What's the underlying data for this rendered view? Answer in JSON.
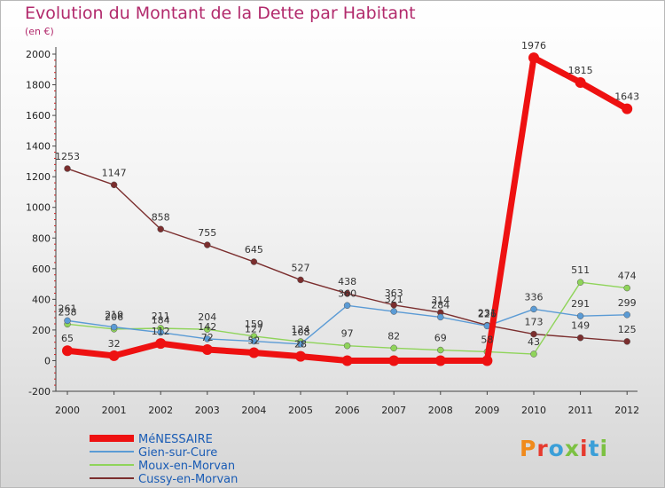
{
  "header": {
    "title": "Evolution du Montant de la Dette par Habitant",
    "subtitle": "(en €)"
  },
  "logo": {
    "text": "Proxiti",
    "colors": [
      "#f08a1c",
      "#e63a2e",
      "#3b9fd8",
      "#7cc142",
      "#e63a2e",
      "#3b9fd8",
      "#7cc142"
    ]
  },
  "chart_data": {
    "type": "line",
    "title": "Evolution du Montant de la Dette par Habitant",
    "ylabel": "(en €)",
    "xlabel": "",
    "x": [
      "2000",
      "2001",
      "2002",
      "2003",
      "2004",
      "2005",
      "2006",
      "2007",
      "2008",
      "2009",
      "2010",
      "2011",
      "2012"
    ],
    "ylim": [
      -200,
      2000
    ],
    "yticks": [
      "-200",
      "0",
      "200",
      "400",
      "600",
      "800",
      "1000",
      "1200",
      "1400",
      "1600",
      "1800",
      "2000"
    ],
    "grid": false,
    "legend": "bottom-left",
    "series": [
      {
        "name": "MéNESSAIRE",
        "color": "#ee1111",
        "values": [
          65,
          32,
          112,
          72,
          52,
          28,
          0,
          0,
          0,
          0,
          1976,
          1815,
          1643
        ],
        "labels": [
          "65",
          "32",
          "112",
          "72",
          "52",
          "28",
          "",
          "",
          "",
          "",
          "1976",
          "1815",
          "1643"
        ]
      },
      {
        "name": "Gien-sur-Cure",
        "color": "#5b9bd5",
        "values": [
          261,
          219,
          184,
          142,
          127,
          108,
          360,
          321,
          284,
          226,
          336,
          291,
          299
        ],
        "labels": [
          "261",
          "219",
          "184",
          "142",
          "127",
          "108",
          "360",
          "321",
          "284",
          "226",
          "336",
          "291",
          "299"
        ]
      },
      {
        "name": "Moux-en-Morvan",
        "color": "#8fd45a",
        "values": [
          238,
          206,
          211,
          204,
          159,
          124,
          97,
          82,
          69,
          58,
          43,
          511,
          474
        ],
        "labels": [
          "238",
          "206",
          "211",
          "204",
          "159",
          "124",
          "97",
          "82",
          "69",
          "58",
          "43",
          "511",
          "474"
        ]
      },
      {
        "name": "Cussy-en-Morvan",
        "color": "#7b2e2e",
        "values": [
          1253,
          1147,
          858,
          755,
          645,
          527,
          438,
          363,
          314,
          231,
          173,
          149,
          125
        ],
        "labels": [
          "1253",
          "1147",
          "858",
          "755",
          "645",
          "527",
          "438",
          "363",
          "314",
          "231",
          "173",
          "149",
          "125"
        ]
      }
    ]
  }
}
